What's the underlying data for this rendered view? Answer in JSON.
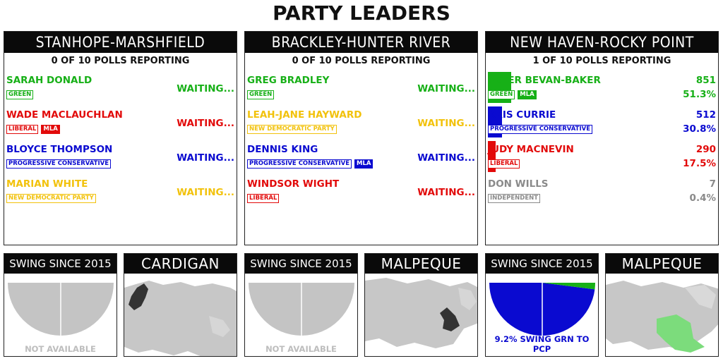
{
  "title": "PARTY LEADERS",
  "colors": {
    "green": "#17b017",
    "liberal": "#e20a0a",
    "pc": "#0a0ad0",
    "ndp": "#f2c20c",
    "independent": "#8a8a8a"
  },
  "ridings": [
    {
      "name": "STANHOPE-MARSHFIELD",
      "polls": "0 OF 10 POLLS REPORTING",
      "candidates": [
        {
          "name": "SARAH DONALD",
          "party": "GREEN",
          "mla": "",
          "status": "WAITING...",
          "color": "#17b017"
        },
        {
          "name": "WADE MACLAUCHLAN",
          "party": "LIBERAL",
          "mla": "MLA",
          "status": "WAITING...",
          "color": "#e20a0a"
        },
        {
          "name": "BLOYCE THOMPSON",
          "party": "PROGRESSIVE CONSERVATIVE",
          "mla": "",
          "status": "WAITING...",
          "color": "#0a0ad0"
        },
        {
          "name": "MARIAN WHITE",
          "party": "NEW DEMOCRATIC PARTY",
          "mla": "",
          "status": "WAITING...",
          "color": "#f2c20c"
        }
      ]
    },
    {
      "name": "BRACKLEY-HUNTER RIVER",
      "polls": "0 OF 10 POLLS REPORTING",
      "candidates": [
        {
          "name": "GREG BRADLEY",
          "party": "GREEN",
          "mla": "",
          "status": "WAITING...",
          "color": "#17b017"
        },
        {
          "name": "LEAH-JANE HAYWARD",
          "party": "NEW DEMOCRATIC PARTY",
          "mla": "",
          "status": "WAITING...",
          "color": "#f2c20c"
        },
        {
          "name": "DENNIS KING",
          "party": "PROGRESSIVE CONSERVATIVE",
          "mla": "MLA",
          "status": "WAITING...",
          "color": "#0a0ad0"
        },
        {
          "name": "WINDSOR WIGHT",
          "party": "LIBERAL",
          "mla": "",
          "status": "WAITING...",
          "color": "#e20a0a"
        }
      ]
    },
    {
      "name": "NEW HAVEN-ROCKY POINT",
      "polls": "1 OF 10 POLLS REPORTING",
      "candidates": [
        {
          "name": "PETER BEVAN-BAKER",
          "party": "GREEN",
          "mla": "MLA",
          "votes": "851",
          "pct": "51.3%",
          "share": 0.513,
          "color": "#17b017"
        },
        {
          "name": "KRIS CURRIE",
          "party": "PROGRESSIVE CONSERVATIVE",
          "mla": "",
          "votes": "512",
          "pct": "30.8%",
          "share": 0.308,
          "color": "#0a0ad0"
        },
        {
          "name": "JUDY MACNEVIN",
          "party": "LIBERAL",
          "mla": "",
          "votes": "290",
          "pct": "17.5%",
          "share": 0.175,
          "color": "#e20a0a"
        },
        {
          "name": "DON WILLS",
          "party": "INDEPENDENT",
          "mla": "",
          "votes": "7",
          "pct": "0.4%",
          "share": 0.004,
          "color": "#8a8a8a"
        }
      ]
    }
  ],
  "swing_boxes": [
    {
      "title": "SWING SINCE 2015",
      "note": "NOT AVAILABLE",
      "available": false
    },
    {
      "title": "SWING SINCE 2015",
      "note": "NOT AVAILABLE",
      "available": false
    },
    {
      "title": "SWING SINCE 2015",
      "note": "9.2% SWING GRN TO PCP",
      "available": true,
      "pc_share": 0.96,
      "green_share": 0.04
    }
  ],
  "district_boxes": [
    {
      "title": "CARDIGAN",
      "highlight_color": "#333333"
    },
    {
      "title": "MALPEQUE",
      "highlight_color": "#333333"
    },
    {
      "title": "MALPEQUE",
      "highlight_color": "#7cdc7c"
    }
  ]
}
